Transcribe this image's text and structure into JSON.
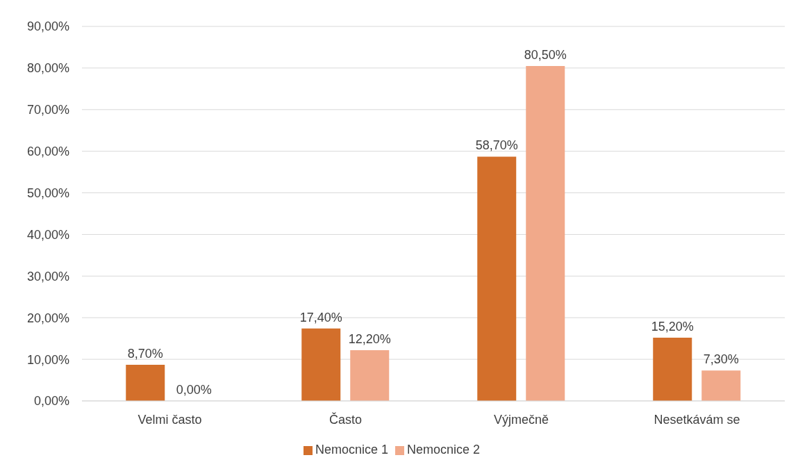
{
  "chart_data": {
    "type": "bar",
    "categories": [
      "Velmi často",
      "Často",
      "Výjmečně",
      "Nesetkávám se"
    ],
    "series": [
      {
        "name": "Nemocnice 1",
        "color": "#d36f2b",
        "values": [
          8.7,
          17.4,
          58.7,
          15.2
        ],
        "value_labels": [
          "8,70%",
          "17,40%",
          "58,70%",
          "15,20%"
        ]
      },
      {
        "name": "Nemocnice 2",
        "color": "#f1a98a",
        "values": [
          0,
          12.2,
          80.5,
          7.3
        ],
        "value_labels": [
          "0,00%",
          "12,20%",
          "80,50%",
          "7,30%"
        ]
      }
    ],
    "ylim": [
      0,
      90
    ],
    "yticks": [
      {
        "value": 0,
        "label": "0,00%"
      },
      {
        "value": 10,
        "label": "10,00%"
      },
      {
        "value": 20,
        "label": "20,00%"
      },
      {
        "value": 30,
        "label": "30,00%"
      },
      {
        "value": 40,
        "label": "40,00%"
      },
      {
        "value": 50,
        "label": "50,00%"
      },
      {
        "value": 60,
        "label": "60,00%"
      },
      {
        "value": 70,
        "label": "70,00%"
      },
      {
        "value": 80,
        "label": "80,00%"
      },
      {
        "value": 90,
        "label": "90,00%"
      }
    ],
    "grid": "y",
    "legend": "bottom"
  }
}
